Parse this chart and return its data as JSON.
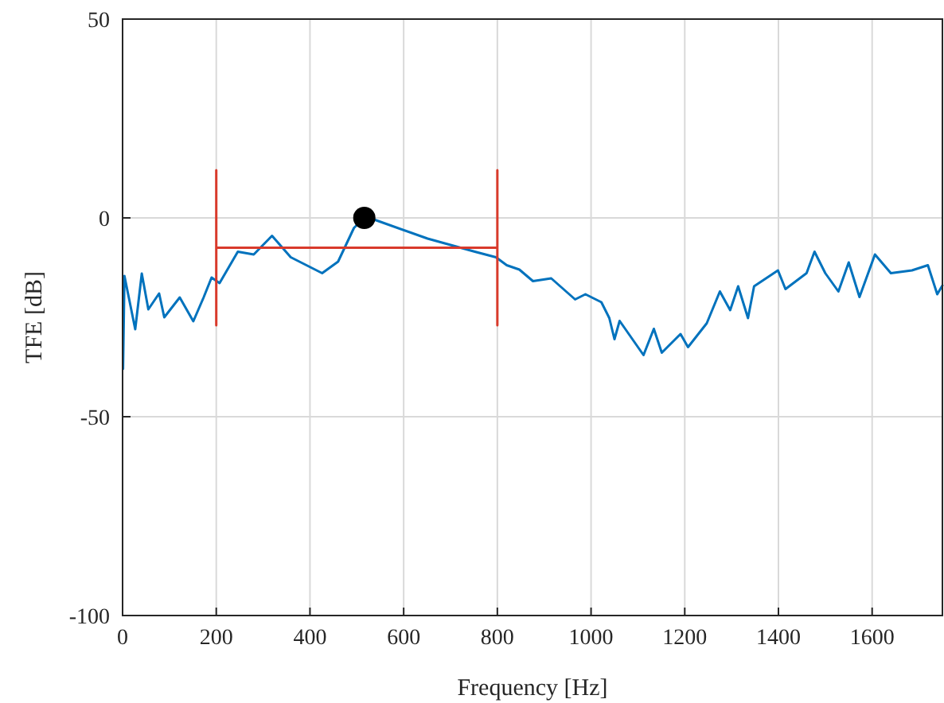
{
  "chart_data": {
    "type": "line",
    "xlabel": "Frequency [Hz]",
    "ylabel": "TFE [dB]",
    "xlim": [
      0,
      1750
    ],
    "ylim": [
      -100,
      50
    ],
    "xticks": [
      0,
      200,
      400,
      600,
      800,
      1000,
      1200,
      1400,
      1600
    ],
    "yticks": [
      -100,
      -50,
      0,
      50
    ],
    "grid": true,
    "series": [
      {
        "color": "#0072bd",
        "x": [
          1,
          4,
          27,
          41,
          55,
          78,
          89,
          122,
          151,
          173,
          190,
          207,
          246,
          280,
          319,
          359,
          426,
          460,
          494,
          516,
          539,
          651,
          752,
          797,
          820,
          847,
          876,
          915,
          966,
          988,
          1022,
          1039,
          1050,
          1061,
          1112,
          1134,
          1151,
          1191,
          1207,
          1247,
          1275,
          1297,
          1314,
          1335,
          1348,
          1399,
          1415,
          1460,
          1477,
          1500,
          1528,
          1550,
          1573,
          1606,
          1640,
          1685,
          1719,
          1739,
          1750
        ],
        "values": [
          -38,
          -14.6,
          -28,
          -14,
          -23,
          -19,
          -25,
          -20,
          -26,
          -20,
          -15,
          -16.4,
          -8.5,
          -9.2,
          -4.5,
          -9.9,
          -13.9,
          -11,
          -2.5,
          0,
          -0.5,
          -5.2,
          -8.5,
          -9.9,
          -11.9,
          -13,
          -15.9,
          -15.2,
          -20.5,
          -19.2,
          -21.2,
          -25.2,
          -30.5,
          -25.9,
          -34.5,
          -27.9,
          -33.9,
          -29.2,
          -32.5,
          -26.5,
          -18.5,
          -23.2,
          -17.2,
          -25.2,
          -17.2,
          -13.2,
          -17.9,
          -13.9,
          -8.5,
          -13.9,
          -18.5,
          -11.2,
          -19.9,
          -9.2,
          -13.9,
          -13.2,
          -11.9,
          -19.2,
          -17
        ]
      },
      {
        "color": "#d93a2b",
        "x": [
          200,
          200,
          200,
          800,
          800,
          800
        ],
        "values": [
          12,
          -27,
          -7.5,
          -7.5,
          12,
          -27
        ]
      },
      {
        "type": "scatter",
        "marker": "circle",
        "color": "#000000",
        "x": [
          516
        ],
        "values": [
          0
        ]
      }
    ]
  }
}
